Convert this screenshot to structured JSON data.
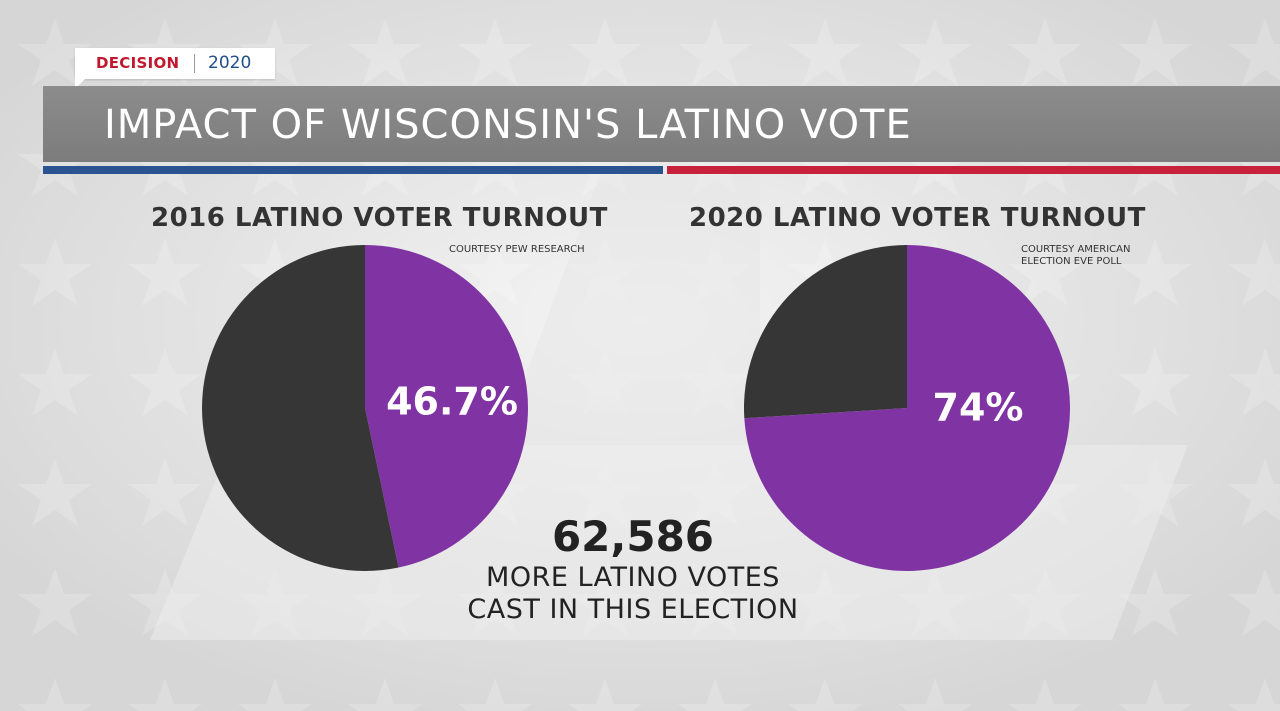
{
  "header": {
    "badge_left": "DECISION",
    "badge_right": "2020",
    "title": "IMPACT OF WISCONSIN'S LATINO VOTE"
  },
  "colors": {
    "purple": "#8034a3",
    "dark": "#363636",
    "blue_stripe": "#2a5392",
    "red_stripe": "#c8213c",
    "title_bar": "#858585",
    "badge_red": "#c2182f",
    "badge_blue": "#1f4e8c"
  },
  "chart_data": [
    {
      "type": "pie",
      "title": "2016 LATINO VOTER TURNOUT",
      "source": "COURTESY PEW RESEARCH",
      "slices": [
        {
          "value": 46.7,
          "label": "46.7%",
          "color": "#8034a3"
        },
        {
          "value": 53.3,
          "label": "",
          "color": "#363636"
        }
      ]
    },
    {
      "type": "pie",
      "title": "2020 LATINO VOTER TURNOUT",
      "source": [
        "COURTESY AMERICAN",
        "ELECTION EVE POLL"
      ],
      "slices": [
        {
          "value": 74,
          "label": "74%",
          "color": "#8034a3"
        },
        {
          "value": 26,
          "label": "",
          "color": "#363636"
        }
      ]
    }
  ],
  "footer": {
    "number": "62,586",
    "line1": "MORE LATINO VOTES",
    "line2": "CAST IN THIS ELECTION"
  }
}
